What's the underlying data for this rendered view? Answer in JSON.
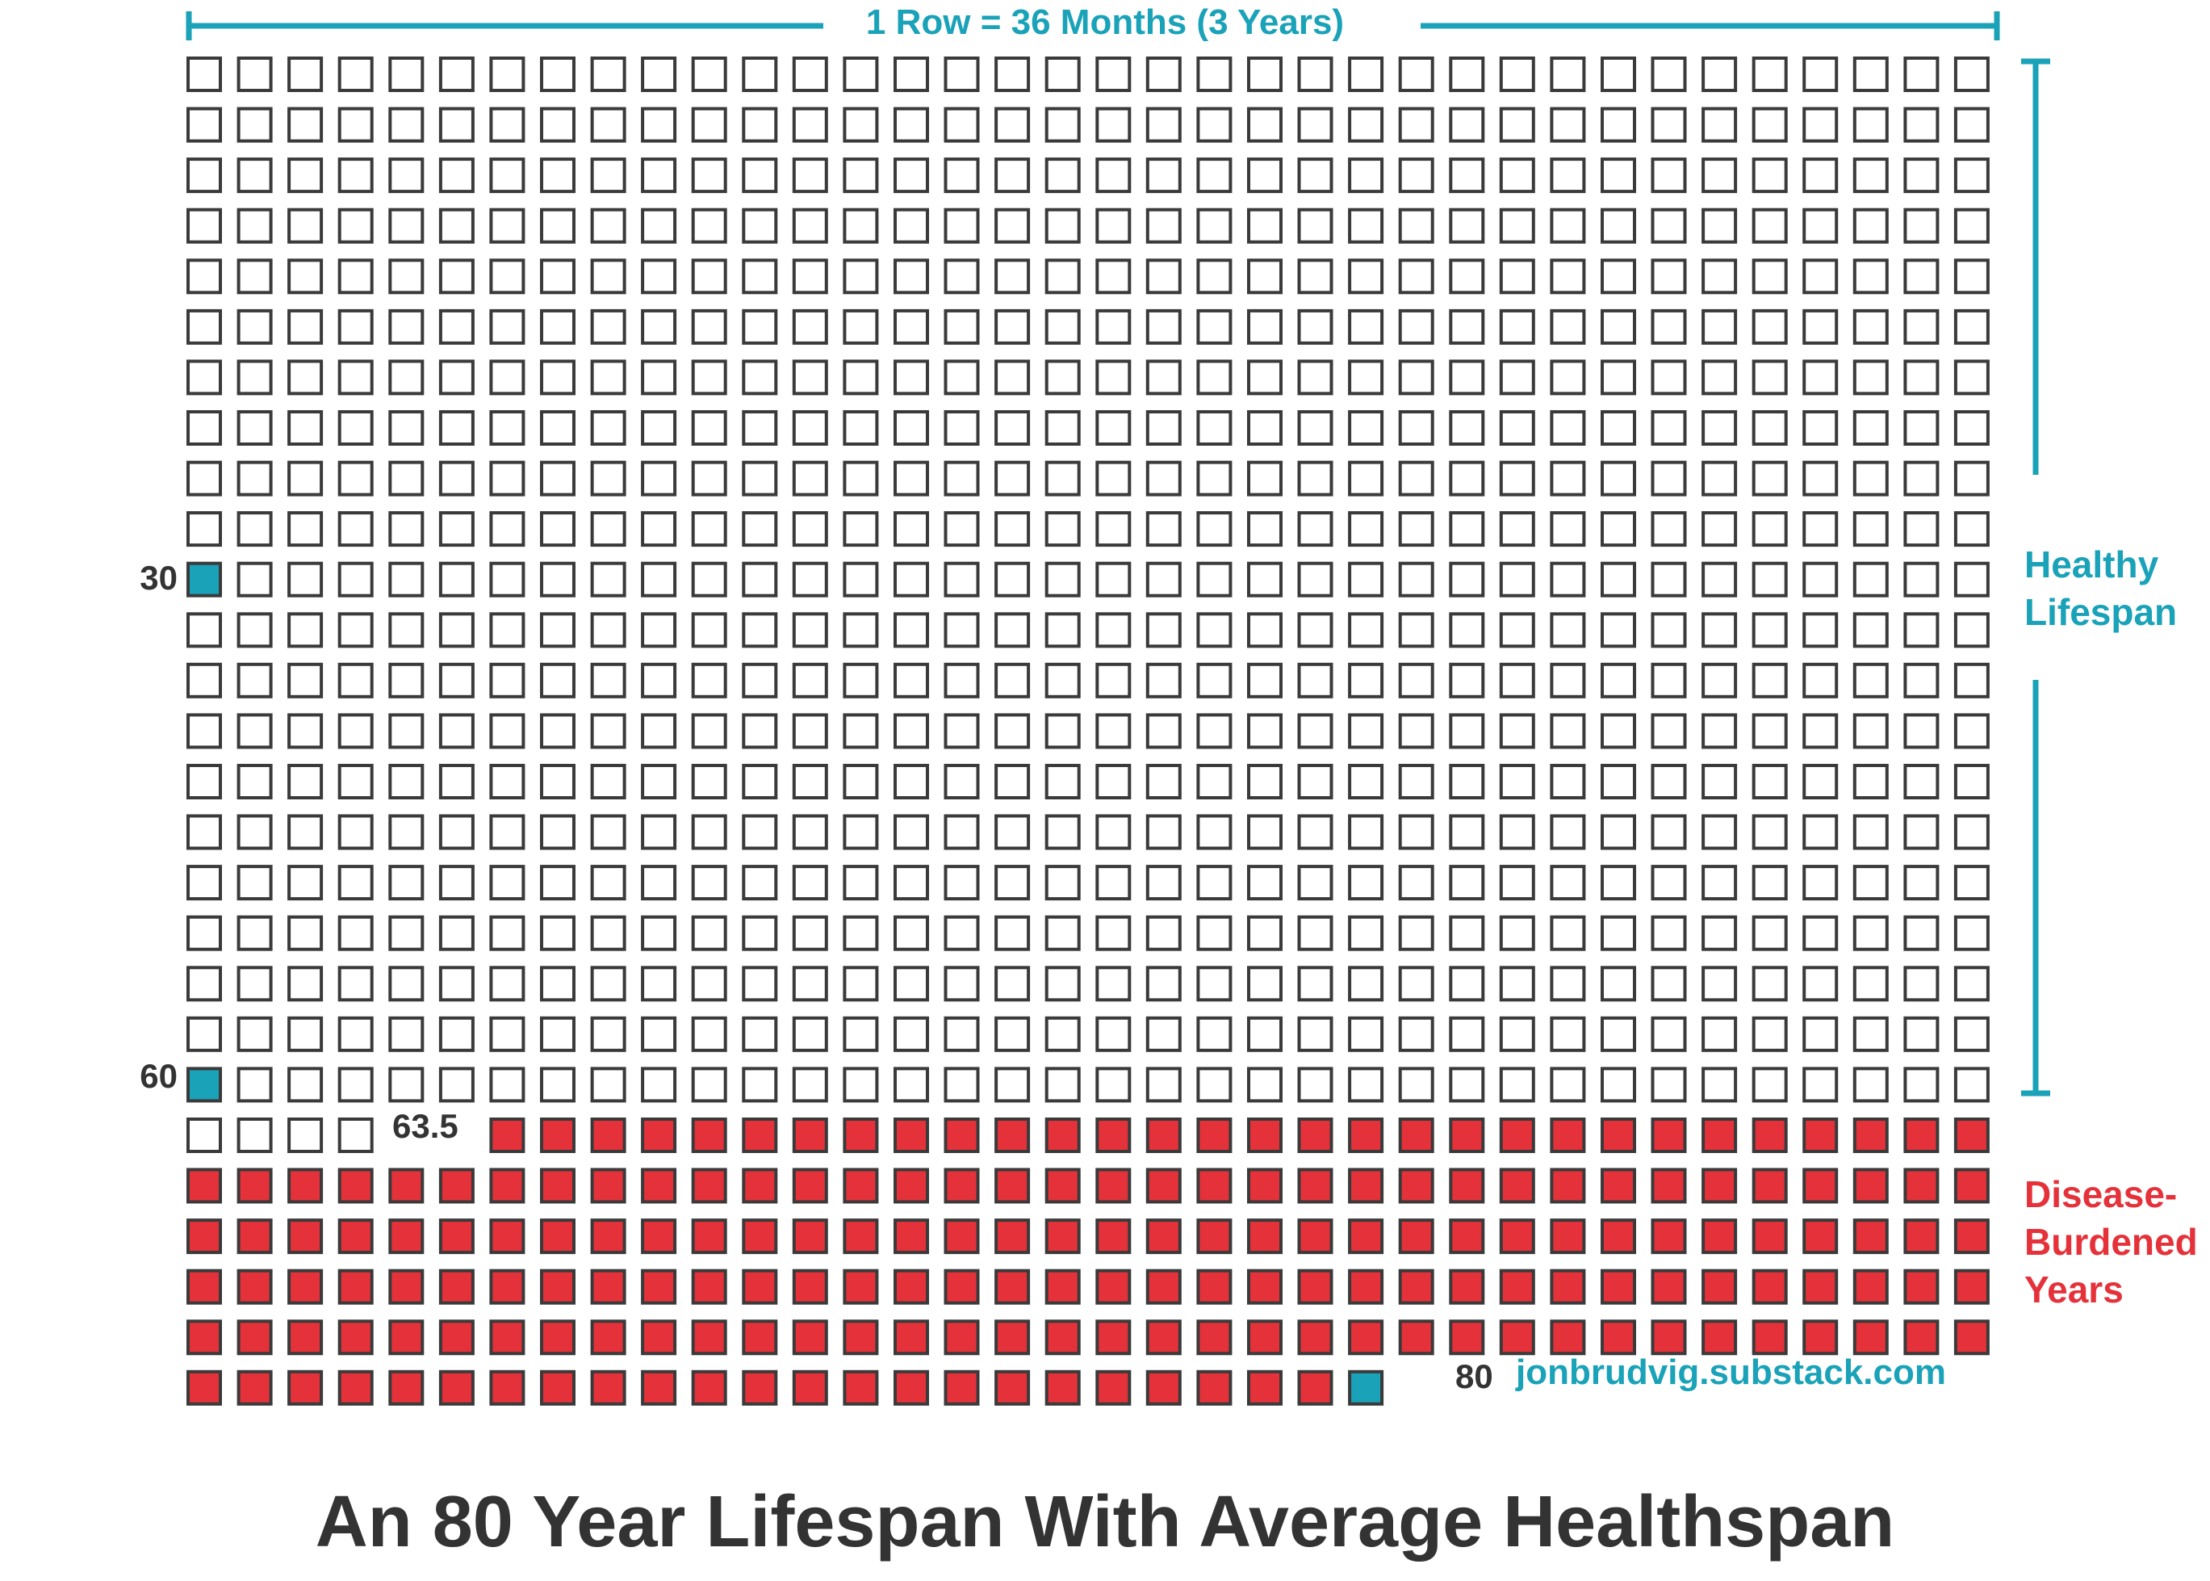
{
  "header": {
    "row_scale_label": "1 Row = 36 Months (3 Years)"
  },
  "side_labels": {
    "healthy_line1": "Healthy",
    "healthy_line2": "Lifespan",
    "disease_line1": "Disease-",
    "disease_line2": "Burdened",
    "disease_line3": "Years"
  },
  "row_labels": {
    "age_30": "30",
    "age_60": "60",
    "age_63_5": "63.5",
    "age_80": "80"
  },
  "source": "jonbrudvig.substack.com",
  "title": "An 80 Year Lifespan With Average Healthspan",
  "colors": {
    "healthy_fill": "#ffffff",
    "disease_fill": "#e5323a",
    "milestone_fill": "#1aa2b8",
    "accent": "#1aa2b8",
    "box_stroke": "#3a3a3a",
    "text": "#333333"
  },
  "chart_data": {
    "type": "waffle",
    "title": "An 80 Year Lifespan With Average Healthspan",
    "unit": "month",
    "columns_per_row": 36,
    "months_per_row": 36,
    "years_per_row": 3,
    "total_years": 80,
    "total_months": 960,
    "rows": 27,
    "last_row_filled_columns": 24,
    "healthy_lifespan_years": 63.5,
    "healthy_months": 762,
    "disease_burdened_years": 16.5,
    "disease_burdened_months": 198,
    "milestones": [
      {
        "age": 30,
        "label": "30",
        "month_index": 360
      },
      {
        "age": 60,
        "label": "60",
        "month_index": 720
      },
      {
        "age": 63.5,
        "label": "63.5",
        "month_index": 762
      },
      {
        "age": 80,
        "label": "80",
        "month_index": 959
      }
    ],
    "categories": [
      {
        "name": "Healthy Lifespan",
        "months": 762
      },
      {
        "name": "Disease-Burdened Years",
        "months": 198
      }
    ]
  }
}
